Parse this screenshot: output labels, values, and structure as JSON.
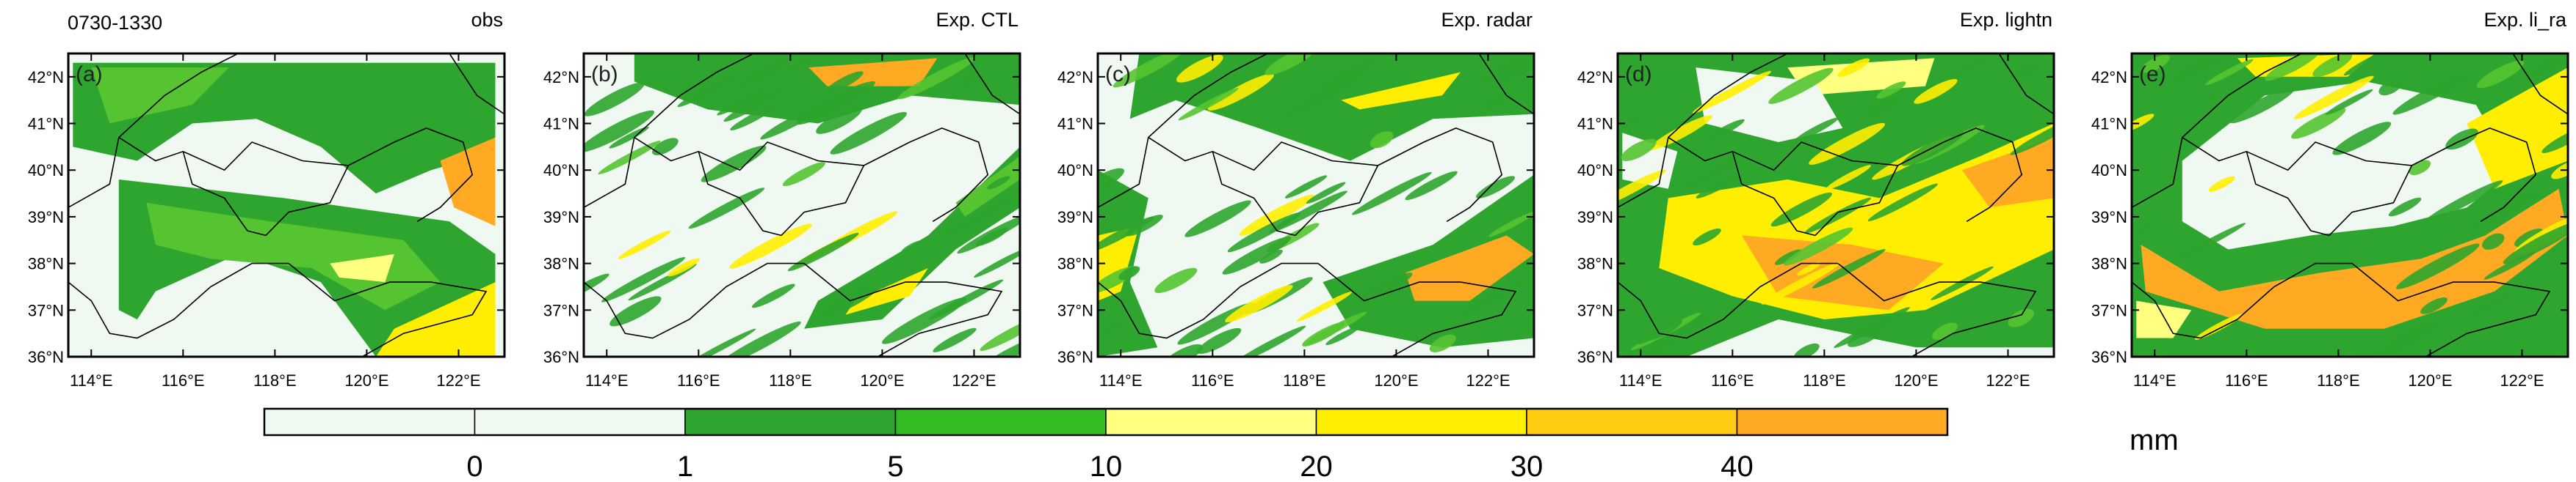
{
  "header": {
    "period": "0730-1330"
  },
  "panels": [
    {
      "tag": "(a)",
      "title": "obs"
    },
    {
      "tag": "(b)",
      "title": "Exp. CTL"
    },
    {
      "tag": "(c)",
      "title": "Exp. radar"
    },
    {
      "tag": "(d)",
      "title": "Exp. lightn"
    },
    {
      "tag": "(e)",
      "title": "Exp. li_ra"
    }
  ],
  "axes": {
    "lat_labels": [
      "42°N",
      "41°N",
      "40°N",
      "39°N",
      "38°N",
      "37°N",
      "36°N"
    ],
    "lon_labels": [
      "114°E",
      "116°E",
      "118°E",
      "120°E",
      "122°E"
    ],
    "lat_range": [
      36,
      42.5
    ],
    "lon_range": [
      113.5,
      123
    ]
  },
  "colorbar": {
    "unit": "mm",
    "tick_labels": [
      "0",
      "1",
      "5",
      "10",
      "20",
      "30",
      "40"
    ],
    "colors": [
      "#f0f8f2",
      "#f0f8f2",
      "#2ea52e",
      "#33bb22",
      "#ffff80",
      "#ffee00",
      "#ffcc11",
      "#ffaa22"
    ]
  },
  "palette": {
    "background_field": "#f0f8f2",
    "dark_green": "#2ea52e",
    "green": "#55c430",
    "light_yellow": "#ffff80",
    "yellow": "#ffee00",
    "orange": "#ffaa22",
    "boundary": "#000000"
  }
}
